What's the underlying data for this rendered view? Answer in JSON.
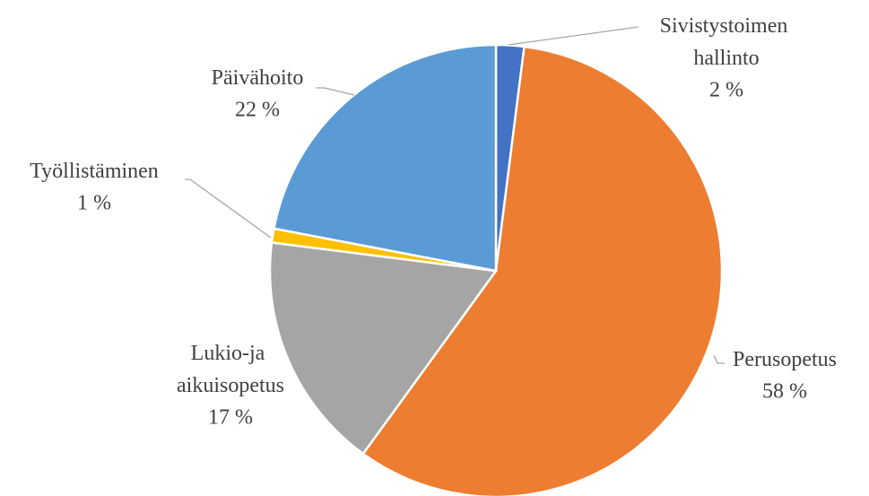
{
  "chart_data": {
    "type": "pie",
    "categories": [
      "Sivistystoimen hallinto",
      "Perusopetus",
      "Lukio-ja aikuisopetus",
      "Työllistäminen",
      "Päivähoito"
    ],
    "values": [
      2,
      58,
      17,
      1,
      22
    ],
    "value_labels": [
      "2 %",
      "58 %",
      "17 %",
      "1 %",
      "22 %"
    ],
    "colors": [
      "#4472c4",
      "#ed7d31",
      "#a5a5a5",
      "#ffc000",
      "#5b9bd5"
    ]
  }
}
